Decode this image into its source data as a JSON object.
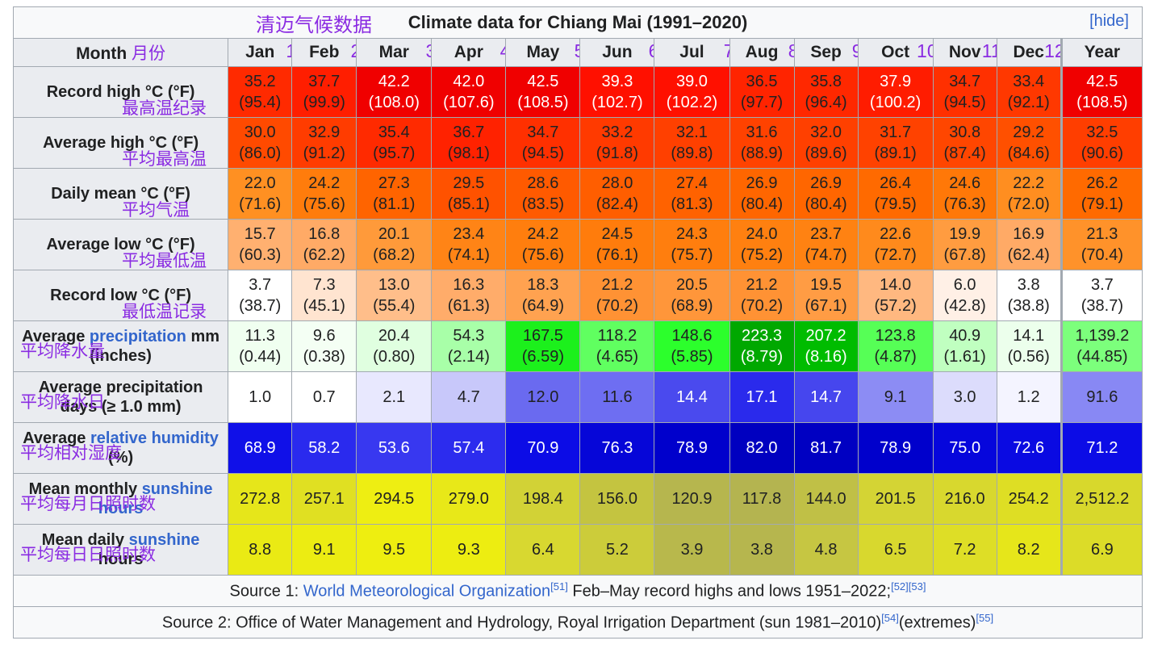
{
  "title": {
    "caption": "Climate data for Chiang Mai (1991–2020)",
    "cn_caption": "清迈气候数据",
    "hide_label": "[hide]"
  },
  "header": {
    "month_label": "Month",
    "month_cn": "月份",
    "columns": [
      {
        "label": "Jan",
        "num": "1"
      },
      {
        "label": "Feb",
        "num": "2"
      },
      {
        "label": "Mar",
        "num": "3"
      },
      {
        "label": "Apr",
        "num": "4"
      },
      {
        "label": "May",
        "num": "5"
      },
      {
        "label": "Jun",
        "num": "6"
      },
      {
        "label": "Jul",
        "num": "7"
      },
      {
        "label": "Aug",
        "num": "8"
      },
      {
        "label": "Sep",
        "num": "9"
      },
      {
        "label": "Oct",
        "num": "10"
      },
      {
        "label": "Nov",
        "num": "11"
      },
      {
        "label": "Dec",
        "num": "12"
      },
      {
        "label": "Year",
        "num": ""
      }
    ]
  },
  "rows": [
    {
      "label": "Record high °C (°F)",
      "cn": "最高温纪录",
      "cells": [
        {
          "v": "35.2",
          "s": "(95.4)",
          "bg": "#ff2a00",
          "fg": "#202122"
        },
        {
          "v": "37.7",
          "s": "(99.9)",
          "bg": "#ff1e00",
          "fg": "#202122"
        },
        {
          "v": "42.2",
          "s": "(108.0)",
          "bg": "#f00000",
          "fg": "#ffffff"
        },
        {
          "v": "42.0",
          "s": "(107.6)",
          "bg": "#f00000",
          "fg": "#ffffff"
        },
        {
          "v": "42.5",
          "s": "(108.5)",
          "bg": "#f00000",
          "fg": "#ffffff"
        },
        {
          "v": "39.3",
          "s": "(102.7)",
          "bg": "#ff1000",
          "fg": "#ffffff"
        },
        {
          "v": "39.0",
          "s": "(102.2)",
          "bg": "#ff1000",
          "fg": "#ffffff"
        },
        {
          "v": "36.5",
          "s": "(97.7)",
          "bg": "#ff2400",
          "fg": "#202122"
        },
        {
          "v": "35.8",
          "s": "(96.4)",
          "bg": "#ff2800",
          "fg": "#202122"
        },
        {
          "v": "37.9",
          "s": "(100.2)",
          "bg": "#ff1c00",
          "fg": "#ffffff"
        },
        {
          "v": "34.7",
          "s": "(94.5)",
          "bg": "#ff3000",
          "fg": "#202122"
        },
        {
          "v": "33.4",
          "s": "(92.1)",
          "bg": "#ff3800",
          "fg": "#202122"
        },
        {
          "v": "42.5",
          "s": "(108.5)",
          "bg": "#f00000",
          "fg": "#ffffff"
        }
      ]
    },
    {
      "label": "Average high °C (°F)",
      "cn": "平均最高温",
      "cells": [
        {
          "v": "30.0",
          "s": "(86.0)",
          "bg": "#ff4a00",
          "fg": "#202122"
        },
        {
          "v": "32.9",
          "s": "(91.2)",
          "bg": "#ff3c00",
          "fg": "#202122"
        },
        {
          "v": "35.4",
          "s": "(95.7)",
          "bg": "#ff2a00",
          "fg": "#202122"
        },
        {
          "v": "36.7",
          "s": "(98.1)",
          "bg": "#ff2200",
          "fg": "#202122"
        },
        {
          "v": "34.7",
          "s": "(94.5)",
          "bg": "#ff3000",
          "fg": "#202122"
        },
        {
          "v": "33.2",
          "s": "(91.8)",
          "bg": "#ff3a00",
          "fg": "#202122"
        },
        {
          "v": "32.1",
          "s": "(89.8)",
          "bg": "#ff4000",
          "fg": "#202122"
        },
        {
          "v": "31.6",
          "s": "(88.9)",
          "bg": "#ff4200",
          "fg": "#202122"
        },
        {
          "v": "32.0",
          "s": "(89.6)",
          "bg": "#ff4000",
          "fg": "#202122"
        },
        {
          "v": "31.7",
          "s": "(89.1)",
          "bg": "#ff4200",
          "fg": "#202122"
        },
        {
          "v": "30.8",
          "s": "(87.4)",
          "bg": "#ff4600",
          "fg": "#202122"
        },
        {
          "v": "29.2",
          "s": "(84.6)",
          "bg": "#ff5000",
          "fg": "#202122"
        },
        {
          "v": "32.5",
          "s": "(90.6)",
          "bg": "#ff3e00",
          "fg": "#202122"
        }
      ]
    },
    {
      "label": "Daily mean °C (°F)",
      "cn": "平均气温",
      "cells": [
        {
          "v": "22.0",
          "s": "(71.6)",
          "bg": "#ff9022",
          "fg": "#202122"
        },
        {
          "v": "24.2",
          "s": "(75.6)",
          "bg": "#ff7c0c",
          "fg": "#202122"
        },
        {
          "v": "27.3",
          "s": "(81.1)",
          "bg": "#ff6400",
          "fg": "#202122"
        },
        {
          "v": "29.5",
          "s": "(85.1)",
          "bg": "#ff5200",
          "fg": "#202122"
        },
        {
          "v": "28.6",
          "s": "(83.5)",
          "bg": "#ff5a00",
          "fg": "#202122"
        },
        {
          "v": "28.0",
          "s": "(82.4)",
          "bg": "#ff5e00",
          "fg": "#202122"
        },
        {
          "v": "27.4",
          "s": "(81.3)",
          "bg": "#ff6200",
          "fg": "#202122"
        },
        {
          "v": "26.9",
          "s": "(80.4)",
          "bg": "#ff6600",
          "fg": "#202122"
        },
        {
          "v": "26.9",
          "s": "(80.4)",
          "bg": "#ff6600",
          "fg": "#202122"
        },
        {
          "v": "26.4",
          "s": "(79.5)",
          "bg": "#ff6a00",
          "fg": "#202122"
        },
        {
          "v": "24.6",
          "s": "(76.3)",
          "bg": "#ff7808",
          "fg": "#202122"
        },
        {
          "v": "22.2",
          "s": "(72.0)",
          "bg": "#ff8e20",
          "fg": "#202122"
        },
        {
          "v": "26.2",
          "s": "(79.1)",
          "bg": "#ff6a00",
          "fg": "#202122"
        }
      ]
    },
    {
      "label": "Average low °C (°F)",
      "cn": "平均最低温",
      "cells": [
        {
          "v": "15.7",
          "s": "(60.3)",
          "bg": "#ffb070",
          "fg": "#202122"
        },
        {
          "v": "16.8",
          "s": "(62.2)",
          "bg": "#ffaa66",
          "fg": "#202122"
        },
        {
          "v": "20.1",
          "s": "(68.2)",
          "bg": "#ff9a3a",
          "fg": "#202122"
        },
        {
          "v": "23.4",
          "s": "(74.1)",
          "bg": "#ff8416",
          "fg": "#202122"
        },
        {
          "v": "24.2",
          "s": "(75.6)",
          "bg": "#ff7e0e",
          "fg": "#202122"
        },
        {
          "v": "24.5",
          "s": "(76.1)",
          "bg": "#ff7c0c",
          "fg": "#202122"
        },
        {
          "v": "24.3",
          "s": "(75.7)",
          "bg": "#ff7e0e",
          "fg": "#202122"
        },
        {
          "v": "24.0",
          "s": "(75.2)",
          "bg": "#ff8010",
          "fg": "#202122"
        },
        {
          "v": "23.7",
          "s": "(74.7)",
          "bg": "#ff8212",
          "fg": "#202122"
        },
        {
          "v": "22.6",
          "s": "(72.7)",
          "bg": "#ff8a1c",
          "fg": "#202122"
        },
        {
          "v": "19.9",
          "s": "(67.8)",
          "bg": "#ff9c40",
          "fg": "#202122"
        },
        {
          "v": "16.9",
          "s": "(62.4)",
          "bg": "#ffaa66",
          "fg": "#202122"
        },
        {
          "v": "21.3",
          "s": "(70.4)",
          "bg": "#ff922a",
          "fg": "#202122"
        }
      ]
    },
    {
      "label": "Record low °C (°F)",
      "cn": "最低温记录",
      "cells": [
        {
          "v": "3.7",
          "s": "(38.7)",
          "bg": "#ffffff",
          "fg": "#202122"
        },
        {
          "v": "7.3",
          "s": "(45.1)",
          "bg": "#ffe4d0",
          "fg": "#202122"
        },
        {
          "v": "13.0",
          "s": "(55.4)",
          "bg": "#ffbe8a",
          "fg": "#202122"
        },
        {
          "v": "16.3",
          "s": "(61.3)",
          "bg": "#ffac6a",
          "fg": "#202122"
        },
        {
          "v": "18.3",
          "s": "(64.9)",
          "bg": "#ffa250",
          "fg": "#202122"
        },
        {
          "v": "21.2",
          "s": "(70.2)",
          "bg": "#ff9234",
          "fg": "#202122"
        },
        {
          "v": "20.5",
          "s": "(68.9)",
          "bg": "#ff963a",
          "fg": "#202122"
        },
        {
          "v": "21.2",
          "s": "(70.2)",
          "bg": "#ff9234",
          "fg": "#202122"
        },
        {
          "v": "19.5",
          "s": "(67.1)",
          "bg": "#ff9c44",
          "fg": "#202122"
        },
        {
          "v": "14.0",
          "s": "(57.2)",
          "bg": "#ffb880",
          "fg": "#202122"
        },
        {
          "v": "6.0",
          "s": "(42.8)",
          "bg": "#fff0e6",
          "fg": "#202122"
        },
        {
          "v": "3.8",
          "s": "(38.8)",
          "bg": "#ffffff",
          "fg": "#202122"
        },
        {
          "v": "3.7",
          "s": "(38.7)",
          "bg": "#ffffff",
          "fg": "#202122"
        }
      ]
    },
    {
      "label_a": "Average ",
      "label_link": "precipitation",
      "label_b": " mm (inches)",
      "cn": "平均降水量",
      "cells": [
        {
          "v": "11.3",
          "s": "(0.44)",
          "bg": "#f0fff0",
          "fg": "#202122"
        },
        {
          "v": "9.6",
          "s": "(0.38)",
          "bg": "#f4fff4",
          "fg": "#202122"
        },
        {
          "v": "20.4",
          "s": "(0.80)",
          "bg": "#e0ffe0",
          "fg": "#202122"
        },
        {
          "v": "54.3",
          "s": "(2.14)",
          "bg": "#a8ffa8",
          "fg": "#202122"
        },
        {
          "v": "167.5",
          "s": "(6.59)",
          "bg": "#1cf01c",
          "fg": "#202122"
        },
        {
          "v": "118.2",
          "s": "(4.65)",
          "bg": "#60ff60",
          "fg": "#202122"
        },
        {
          "v": "148.6",
          "s": "(5.85)",
          "bg": "#2cff2c",
          "fg": "#202122"
        },
        {
          "v": "223.3",
          "s": "(8.79)",
          "bg": "#00a800",
          "fg": "#ffffff"
        },
        {
          "v": "207.2",
          "s": "(8.16)",
          "bg": "#00bc00",
          "fg": "#ffffff"
        },
        {
          "v": "123.8",
          "s": "(4.87)",
          "bg": "#56ff56",
          "fg": "#202122"
        },
        {
          "v": "40.9",
          "s": "(1.61)",
          "bg": "#c0ffc0",
          "fg": "#202122"
        },
        {
          "v": "14.1",
          "s": "(0.56)",
          "bg": "#ecffec",
          "fg": "#202122"
        },
        {
          "v": "1,139.2",
          "s": "(44.85)",
          "bg": "#7cff7c",
          "fg": "#202122"
        }
      ]
    },
    {
      "label": "Average precipitation days (≥ 1.0 mm)",
      "cn": "平均降水日",
      "cells": [
        {
          "v": "1.0",
          "s": "",
          "bg": "#ffffff",
          "fg": "#202122"
        },
        {
          "v": "0.7",
          "s": "",
          "bg": "#ffffff",
          "fg": "#202122"
        },
        {
          "v": "2.1",
          "s": "",
          "bg": "#e8e8fe",
          "fg": "#202122"
        },
        {
          "v": "4.7",
          "s": "",
          "bg": "#c8c8fa",
          "fg": "#202122"
        },
        {
          "v": "12.0",
          "s": "",
          "bg": "#6a6af0",
          "fg": "#202122"
        },
        {
          "v": "11.6",
          "s": "",
          "bg": "#6e6ef2",
          "fg": "#202122"
        },
        {
          "v": "14.4",
          "s": "",
          "bg": "#4a4aee",
          "fg": "#ffffff"
        },
        {
          "v": "17.1",
          "s": "",
          "bg": "#2a2aec",
          "fg": "#ffffff"
        },
        {
          "v": "14.7",
          "s": "",
          "bg": "#4646ee",
          "fg": "#ffffff"
        },
        {
          "v": "9.1",
          "s": "",
          "bg": "#8c8cf4",
          "fg": "#202122"
        },
        {
          "v": "3.0",
          "s": "",
          "bg": "#dcdcfc",
          "fg": "#202122"
        },
        {
          "v": "1.2",
          "s": "",
          "bg": "#f4f4ff",
          "fg": "#202122"
        },
        {
          "v": "91.6",
          "s": "",
          "bg": "#8888f4",
          "fg": "#202122"
        }
      ]
    },
    {
      "label_a": "Average ",
      "label_link": "relative humidity",
      "label_b": " (%)",
      "cn": "平均相对湿度",
      "cells": [
        {
          "v": "68.9",
          "s": "",
          "bg": "#1010e8",
          "fg": "#ffffff"
        },
        {
          "v": "58.2",
          "s": "",
          "bg": "#2a2aee",
          "fg": "#ffffff"
        },
        {
          "v": "53.6",
          "s": "",
          "bg": "#3838f0",
          "fg": "#ffffff"
        },
        {
          "v": "57.4",
          "s": "",
          "bg": "#2c2cee",
          "fg": "#ffffff"
        },
        {
          "v": "70.9",
          "s": "",
          "bg": "#0c0ce6",
          "fg": "#ffffff"
        },
        {
          "v": "76.3",
          "s": "",
          "bg": "#0606d8",
          "fg": "#ffffff"
        },
        {
          "v": "78.9",
          "s": "",
          "bg": "#0000cc",
          "fg": "#ffffff"
        },
        {
          "v": "82.0",
          "s": "",
          "bg": "#0000c0",
          "fg": "#ffffff"
        },
        {
          "v": "81.7",
          "s": "",
          "bg": "#0000c2",
          "fg": "#ffffff"
        },
        {
          "v": "78.9",
          "s": "",
          "bg": "#0000cc",
          "fg": "#ffffff"
        },
        {
          "v": "75.0",
          "s": "",
          "bg": "#0606dc",
          "fg": "#ffffff"
        },
        {
          "v": "72.6",
          "s": "",
          "bg": "#0a0ae2",
          "fg": "#ffffff"
        },
        {
          "v": "71.2",
          "s": "",
          "bg": "#0c0ce6",
          "fg": "#ffffff"
        }
      ]
    },
    {
      "label_a": "Mean monthly ",
      "label_link": "sunshine hours",
      "label_b": "",
      "cn": "平均每月日照时数",
      "cells": [
        {
          "v": "272.8",
          "s": "",
          "bg": "#e6e61a",
          "fg": "#202122"
        },
        {
          "v": "257.1",
          "s": "",
          "bg": "#e0e022",
          "fg": "#202122"
        },
        {
          "v": "294.5",
          "s": "",
          "bg": "#eeee12",
          "fg": "#202122"
        },
        {
          "v": "279.0",
          "s": "",
          "bg": "#e8e818",
          "fg": "#202122"
        },
        {
          "v": "198.4",
          "s": "",
          "bg": "#d2d236",
          "fg": "#202122"
        },
        {
          "v": "156.0",
          "s": "",
          "bg": "#c4c440",
          "fg": "#202122"
        },
        {
          "v": "120.9",
          "s": "",
          "bg": "#b6b64e",
          "fg": "#202122"
        },
        {
          "v": "117.8",
          "s": "",
          "bg": "#b4b450",
          "fg": "#202122"
        },
        {
          "v": "144.0",
          "s": "",
          "bg": "#c0c046",
          "fg": "#202122"
        },
        {
          "v": "201.5",
          "s": "",
          "bg": "#d4d434",
          "fg": "#202122"
        },
        {
          "v": "216.0",
          "s": "",
          "bg": "#d8d82e",
          "fg": "#202122"
        },
        {
          "v": "254.2",
          "s": "",
          "bg": "#dede24",
          "fg": "#202122"
        },
        {
          "v": "2,512.2",
          "s": "",
          "bg": "#d8d82c",
          "fg": "#202122"
        }
      ]
    },
    {
      "label_a": "Mean daily ",
      "label_link": "sunshine",
      "label_b": " hours",
      "cn": "平均每日日照时数",
      "cells": [
        {
          "v": "8.8",
          "s": "",
          "bg": "#eaea14",
          "fg": "#202122"
        },
        {
          "v": "9.1",
          "s": "",
          "bg": "#ecec12",
          "fg": "#202122"
        },
        {
          "v": "9.5",
          "s": "",
          "bg": "#eeee10",
          "fg": "#202122"
        },
        {
          "v": "9.3",
          "s": "",
          "bg": "#eded11",
          "fg": "#202122"
        },
        {
          "v": "6.4",
          "s": "",
          "bg": "#d8d830",
          "fg": "#202122"
        },
        {
          "v": "5.2",
          "s": "",
          "bg": "#cccc3a",
          "fg": "#202122"
        },
        {
          "v": "3.9",
          "s": "",
          "bg": "#b8b84c",
          "fg": "#202122"
        },
        {
          "v": "3.8",
          "s": "",
          "bg": "#b6b64e",
          "fg": "#202122"
        },
        {
          "v": "4.8",
          "s": "",
          "bg": "#c6c642",
          "fg": "#202122"
        },
        {
          "v": "6.5",
          "s": "",
          "bg": "#d8d82e",
          "fg": "#202122"
        },
        {
          "v": "7.2",
          "s": "",
          "bg": "#dede26",
          "fg": "#202122"
        },
        {
          "v": "8.2",
          "s": "",
          "bg": "#e6e61a",
          "fg": "#202122"
        },
        {
          "v": "6.9",
          "s": "",
          "bg": "#dcdc28",
          "fg": "#202122"
        }
      ]
    }
  ],
  "sources": {
    "source1_prefix": "Source 1: ",
    "source1_link": "World Meteorological Organization",
    "source1_ref1": "[51]",
    "source1_text": " Feb–May record highs and lows 1951–2022;",
    "source1_ref2": "[52][53]",
    "source2_text": "Source 2: Office of Water Management and Hydrology, Royal Irrigation Department (sun 1981–2010)",
    "source2_ref1": "[54]",
    "source2_mid": "(extremes)",
    "source2_ref2": "[55]"
  }
}
